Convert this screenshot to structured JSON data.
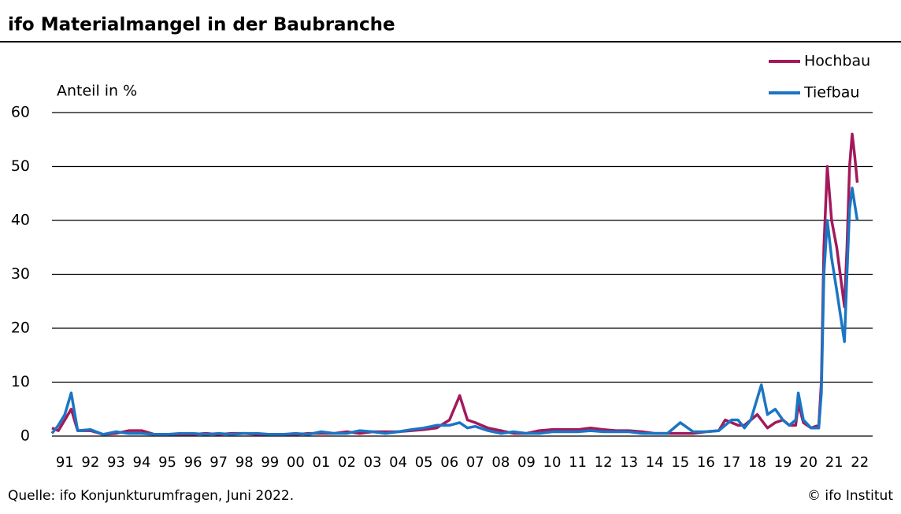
{
  "chart_data": {
    "type": "line",
    "title": "ifo Materialmangel in der Baubranche",
    "y_label": "Anteil in %",
    "source": "Quelle: ifo Konjunkturumfragen, Juni 2022.",
    "copyright": "© ifo Institut",
    "legend": "top-right",
    "grid": true,
    "xlim": [
      1991,
      2023
    ],
    "ylim": [
      0,
      60
    ],
    "yticks": [
      0,
      10,
      20,
      30,
      40,
      50,
      60
    ],
    "xticks": [
      {
        "value": 1991.5,
        "label": "91"
      },
      {
        "value": 1992.5,
        "label": "92"
      },
      {
        "value": 1993.5,
        "label": "93"
      },
      {
        "value": 1994.5,
        "label": "94"
      },
      {
        "value": 1995.5,
        "label": "95"
      },
      {
        "value": 1996.5,
        "label": "96"
      },
      {
        "value": 1997.5,
        "label": "97"
      },
      {
        "value": 1998.5,
        "label": "98"
      },
      {
        "value": 1999.5,
        "label": "99"
      },
      {
        "value": 2000.5,
        "label": "00"
      },
      {
        "value": 2001.5,
        "label": "01"
      },
      {
        "value": 2002.5,
        "label": "02"
      },
      {
        "value": 2003.5,
        "label": "03"
      },
      {
        "value": 2004.5,
        "label": "04"
      },
      {
        "value": 2005.5,
        "label": "05"
      },
      {
        "value": 2006.5,
        "label": "06"
      },
      {
        "value": 2007.5,
        "label": "07"
      },
      {
        "value": 2008.5,
        "label": "08"
      },
      {
        "value": 2009.5,
        "label": "09"
      },
      {
        "value": 2010.5,
        "label": "10"
      },
      {
        "value": 2011.5,
        "label": "11"
      },
      {
        "value": 2012.5,
        "label": "12"
      },
      {
        "value": 2013.5,
        "label": "13"
      },
      {
        "value": 2014.5,
        "label": "14"
      },
      {
        "value": 2015.5,
        "label": "15"
      },
      {
        "value": 2016.5,
        "label": "16"
      },
      {
        "value": 2017.5,
        "label": "17"
      },
      {
        "value": 2018.5,
        "label": "18"
      },
      {
        "value": 2019.5,
        "label": "19"
      },
      {
        "value": 2020.5,
        "label": "20"
      },
      {
        "value": 2021.5,
        "label": "21"
      },
      {
        "value": 2022.5,
        "label": "22"
      }
    ],
    "x": [
      1991.0,
      1991.25,
      1991.5,
      1991.75,
      1992.0,
      1992.5,
      1993.0,
      1993.5,
      1994.0,
      1994.5,
      1995.0,
      1995.5,
      1996.0,
      1996.5,
      1997.0,
      1997.5,
      1998.0,
      1998.5,
      1999.0,
      1999.5,
      2000.0,
      2000.5,
      2001.0,
      2001.5,
      2002.0,
      2002.5,
      2003.0,
      2003.5,
      2004.0,
      2004.5,
      2005.0,
      2005.5,
      2006.0,
      2006.5,
      2006.9,
      2007.2,
      2007.5,
      2008.0,
      2008.5,
      2009.0,
      2009.5,
      2010.0,
      2010.5,
      2011.0,
      2011.5,
      2012.0,
      2012.5,
      2013.0,
      2013.5,
      2014.0,
      2014.5,
      2015.0,
      2015.5,
      2016.0,
      2016.5,
      2017.0,
      2017.25,
      2017.5,
      2017.75,
      2018.0,
      2018.25,
      2018.5,
      2018.66,
      2018.9,
      2019.2,
      2019.5,
      2019.75,
      2020.0,
      2020.1,
      2020.3,
      2020.6,
      2020.9,
      2021.0,
      2021.1,
      2021.23,
      2021.4,
      2021.6,
      2021.9,
      2022.0,
      2022.1,
      2022.2,
      2022.3,
      2022.4
    ],
    "series": [
      {
        "name": "Hochbau",
        "color": "#a3195b",
        "values": [
          1.5,
          1,
          3,
          5,
          1,
          1,
          0.3,
          0.5,
          1,
          1,
          0.3,
          0.3,
          0.3,
          0.3,
          0.5,
          0.3,
          0.5,
          0.5,
          0.3,
          0.3,
          0.3,
          0.3,
          0.5,
          0.5,
          0.5,
          0.8,
          0.5,
          0.8,
          0.8,
          0.8,
          1,
          1.2,
          1.5,
          3,
          7.5,
          3,
          2.5,
          1.5,
          1,
          0.5,
          0.5,
          1,
          1.2,
          1.2,
          1.2,
          1.5,
          1.2,
          1,
          1,
          0.8,
          0.5,
          0.5,
          0.5,
          0.5,
          0.8,
          1,
          3,
          2.5,
          2,
          2,
          3,
          4,
          3,
          1.5,
          2.5,
          3,
          2,
          2,
          6,
          2.5,
          1.5,
          2,
          10,
          35,
          50,
          40,
          35,
          24,
          35,
          50,
          56,
          52,
          47
        ]
      },
      {
        "name": "Tiefbau",
        "color": "#1b75c4",
        "values": [
          0.5,
          2,
          4,
          8,
          1,
          1.2,
          0.3,
          0.8,
          0.5,
          0.5,
          0.3,
          0.3,
          0.5,
          0.5,
          0.3,
          0.5,
          0.3,
          0.5,
          0.5,
          0.3,
          0.3,
          0.5,
          0.3,
          0.8,
          0.5,
          0.5,
          1,
          0.8,
          0.5,
          0.8,
          1.2,
          1.5,
          2,
          2,
          2.5,
          1.5,
          1.8,
          1,
          0.5,
          0.8,
          0.5,
          0.5,
          0.8,
          0.8,
          0.8,
          1,
          0.8,
          0.8,
          0.8,
          0.5,
          0.5,
          0.5,
          2.5,
          0.8,
          0.8,
          1,
          2,
          3,
          3,
          1.5,
          3,
          7,
          9.5,
          4,
          5,
          3,
          2,
          3,
          8,
          3,
          1.5,
          1.5,
          8,
          30,
          40,
          33,
          27,
          17.5,
          30,
          42,
          46,
          43,
          40
        ]
      }
    ]
  }
}
